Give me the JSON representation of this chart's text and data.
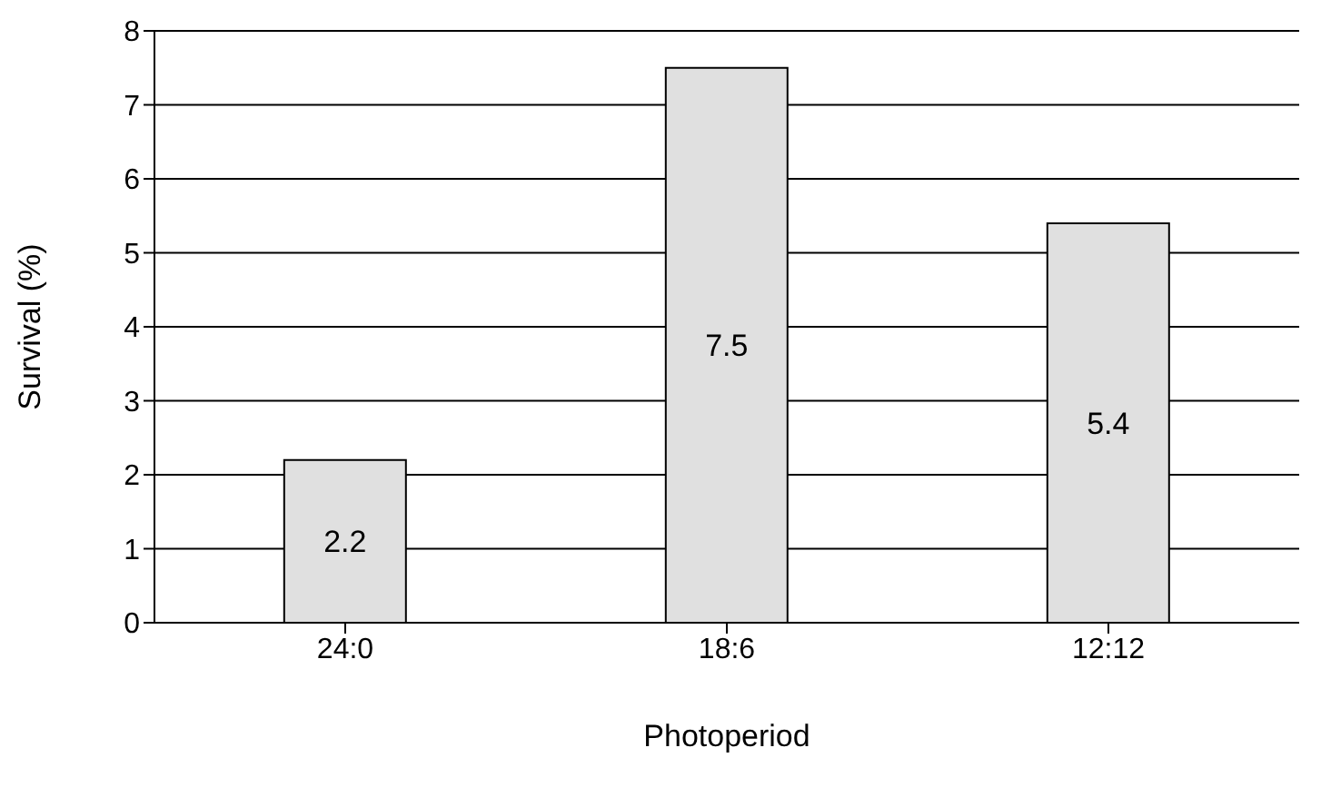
{
  "chart_data": {
    "type": "bar",
    "xlabel": "Photoperiod",
    "ylabel": "Survival (%)",
    "categories": [
      "24:0",
      "18:6",
      "12:12"
    ],
    "values": [
      2.2,
      7.5,
      5.4
    ],
    "color": "#e0e0e0",
    "ylim": [
      0,
      8
    ],
    "yticks": [
      0,
      1,
      2,
      3,
      4,
      5,
      6,
      7,
      8
    ],
    "grid": "y",
    "data_labels": true
  }
}
